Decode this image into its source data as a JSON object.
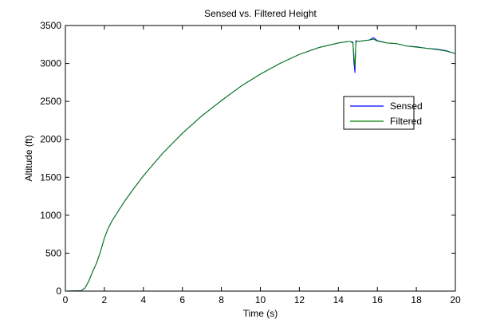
{
  "chart_data": {
    "type": "line",
    "title": "Sensed vs. Filtered Height",
    "xlabel": "Time (s)",
    "ylabel": "Altitude (ft)",
    "xlim": [
      0,
      20
    ],
    "ylim": [
      0,
      3500
    ],
    "xticks": [
      0,
      2,
      4,
      6,
      8,
      10,
      12,
      14,
      16,
      18,
      20
    ],
    "yticks": [
      0,
      500,
      1000,
      1500,
      2000,
      2500,
      3000,
      3500
    ],
    "grid": false,
    "legend_position": "right",
    "series": [
      {
        "name": "Sensed",
        "color": "#0000ff",
        "x": [
          0,
          0.8,
          1.0,
          1.2,
          1.4,
          1.6,
          1.8,
          2.0,
          2.2,
          2.4,
          2.6,
          3.0,
          3.5,
          4.0,
          5.0,
          6.0,
          7.0,
          8.0,
          9.0,
          10.0,
          11.0,
          12.0,
          13.0,
          14.0,
          14.5,
          14.6,
          14.75,
          14.8,
          14.85,
          14.9,
          15.0,
          15.3,
          15.6,
          15.8,
          16.0,
          16.5,
          17.0,
          17.5,
          18.0,
          18.5,
          19.0,
          19.5,
          20.0
        ],
        "y": [
          0,
          5,
          40,
          130,
          260,
          370,
          520,
          700,
          830,
          930,
          1010,
          1170,
          1350,
          1520,
          1820,
          2080,
          2310,
          2510,
          2700,
          2860,
          3000,
          3120,
          3210,
          3270,
          3290,
          3290,
          3280,
          3000,
          2880,
          3300,
          3290,
          3300,
          3310,
          3340,
          3300,
          3270,
          3260,
          3230,
          3220,
          3200,
          3190,
          3170,
          3130
        ]
      },
      {
        "name": "Filtered",
        "color": "#008000",
        "x": [
          0,
          0.8,
          1.0,
          1.2,
          1.4,
          1.6,
          1.8,
          2.0,
          2.2,
          2.4,
          2.6,
          3.0,
          3.5,
          4.0,
          5.0,
          6.0,
          7.0,
          8.0,
          9.0,
          10.0,
          11.0,
          12.0,
          13.0,
          14.0,
          14.5,
          14.6,
          14.75,
          14.8,
          14.85,
          14.9,
          15.0,
          15.3,
          15.6,
          15.8,
          16.0,
          16.5,
          17.0,
          17.5,
          18.0,
          18.5,
          19.0,
          19.5,
          20.0
        ],
        "y": [
          0,
          5,
          40,
          130,
          260,
          370,
          520,
          700,
          830,
          930,
          1010,
          1170,
          1350,
          1520,
          1820,
          2080,
          2310,
          2510,
          2700,
          2860,
          3000,
          3120,
          3210,
          3270,
          3290,
          3290,
          3270,
          3100,
          2950,
          3290,
          3290,
          3300,
          3310,
          3320,
          3295,
          3270,
          3260,
          3230,
          3215,
          3200,
          3185,
          3165,
          3130
        ]
      }
    ]
  }
}
